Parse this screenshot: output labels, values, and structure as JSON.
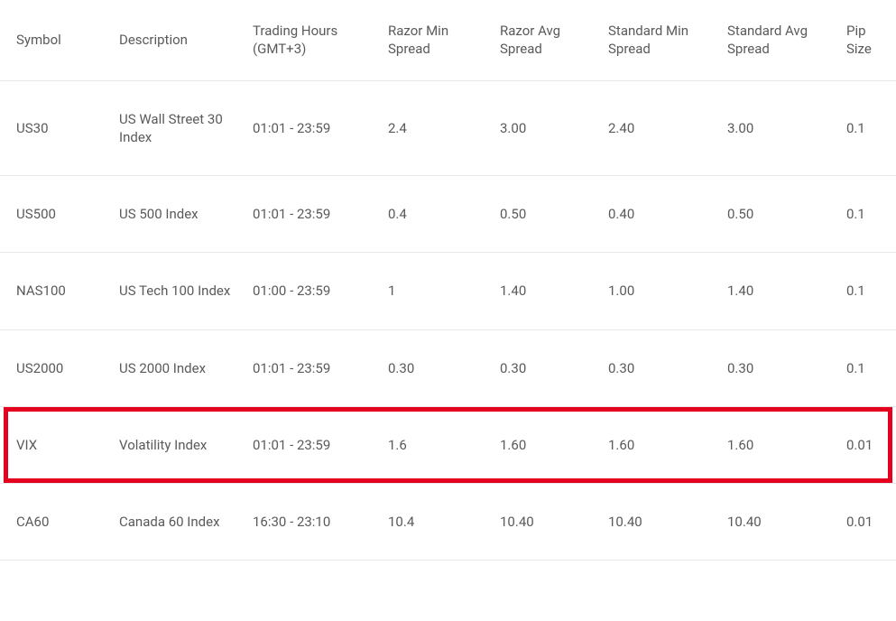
{
  "spreads_table": {
    "type": "table",
    "background_color": "#ffffff",
    "border_color": "#e8e8e8",
    "text_color": "#5a5a5a",
    "highlight_color": "#e6001f",
    "highlighted_row_index": 4,
    "font_size": 15,
    "columns": [
      {
        "key": "symbol",
        "label": "Symbol"
      },
      {
        "key": "description",
        "label": "Description"
      },
      {
        "key": "hours",
        "label": "Trading Hours (GMT+3)"
      },
      {
        "key": "razor_min",
        "label": "Razor Min Spread"
      },
      {
        "key": "razor_avg",
        "label": "Razor Avg Spread"
      },
      {
        "key": "std_min",
        "label": "Standard Min Spread"
      },
      {
        "key": "std_avg",
        "label": "Standard Avg Spread"
      },
      {
        "key": "pip",
        "label": "Pip Size"
      }
    ],
    "rows": [
      {
        "symbol": "US30",
        "description": "US Wall Street 30 Index",
        "hours": "01:01 - 23:59",
        "razor_min": "2.4",
        "razor_avg": "3.00",
        "std_min": "2.40",
        "std_avg": "3.00",
        "pip": "0.1"
      },
      {
        "symbol": "US500",
        "description": "US 500 Index",
        "hours": "01:01 - 23:59",
        "razor_min": "0.4",
        "razor_avg": "0.50",
        "std_min": "0.40",
        "std_avg": "0.50",
        "pip": "0.1"
      },
      {
        "symbol": "NAS100",
        "description": "US Tech 100 Index",
        "hours": "01:00 - 23:59",
        "razor_min": "1",
        "razor_avg": "1.40",
        "std_min": "1.00",
        "std_avg": "1.40",
        "pip": "0.1"
      },
      {
        "symbol": "US2000",
        "description": "US 2000 Index",
        "hours": "01:01 - 23:59",
        "razor_min": "0.30",
        "razor_avg": "0.30",
        "std_min": "0.30",
        "std_avg": "0.30",
        "pip": "0.1"
      },
      {
        "symbol": "VIX",
        "description": "Volatility Index",
        "hours": "01:01 - 23:59",
        "razor_min": "1.6",
        "razor_avg": "1.60",
        "std_min": "1.60",
        "std_avg": "1.60",
        "pip": "0.01"
      },
      {
        "symbol": "CA60",
        "description": "Canada 60 Index",
        "hours": "16:30 - 23:10",
        "razor_min": "10.4",
        "razor_avg": "10.40",
        "std_min": "10.40",
        "std_avg": "10.40",
        "pip": "0.01"
      }
    ]
  }
}
